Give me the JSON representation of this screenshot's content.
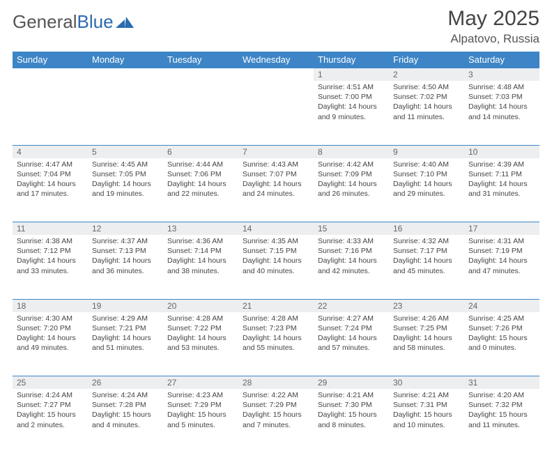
{
  "logo": {
    "part1": "General",
    "part2": "Blue"
  },
  "title": "May 2025",
  "location": "Alpatovo, Russia",
  "colors": {
    "header_bg": "#3d85c6",
    "header_text": "#ffffff",
    "daynum_bg": "#eceef0",
    "text": "#444444",
    "accent": "#2b6bb0"
  },
  "weekdays": [
    "Sunday",
    "Monday",
    "Tuesday",
    "Wednesday",
    "Thursday",
    "Friday",
    "Saturday"
  ],
  "weeks": [
    [
      null,
      null,
      null,
      null,
      {
        "n": "1",
        "sr": "Sunrise: 4:51 AM",
        "ss": "Sunset: 7:00 PM",
        "d1": "Daylight: 14 hours",
        "d2": "and 9 minutes."
      },
      {
        "n": "2",
        "sr": "Sunrise: 4:50 AM",
        "ss": "Sunset: 7:02 PM",
        "d1": "Daylight: 14 hours",
        "d2": "and 11 minutes."
      },
      {
        "n": "3",
        "sr": "Sunrise: 4:48 AM",
        "ss": "Sunset: 7:03 PM",
        "d1": "Daylight: 14 hours",
        "d2": "and 14 minutes."
      }
    ],
    [
      {
        "n": "4",
        "sr": "Sunrise: 4:47 AM",
        "ss": "Sunset: 7:04 PM",
        "d1": "Daylight: 14 hours",
        "d2": "and 17 minutes."
      },
      {
        "n": "5",
        "sr": "Sunrise: 4:45 AM",
        "ss": "Sunset: 7:05 PM",
        "d1": "Daylight: 14 hours",
        "d2": "and 19 minutes."
      },
      {
        "n": "6",
        "sr": "Sunrise: 4:44 AM",
        "ss": "Sunset: 7:06 PM",
        "d1": "Daylight: 14 hours",
        "d2": "and 22 minutes."
      },
      {
        "n": "7",
        "sr": "Sunrise: 4:43 AM",
        "ss": "Sunset: 7:07 PM",
        "d1": "Daylight: 14 hours",
        "d2": "and 24 minutes."
      },
      {
        "n": "8",
        "sr": "Sunrise: 4:42 AM",
        "ss": "Sunset: 7:09 PM",
        "d1": "Daylight: 14 hours",
        "d2": "and 26 minutes."
      },
      {
        "n": "9",
        "sr": "Sunrise: 4:40 AM",
        "ss": "Sunset: 7:10 PM",
        "d1": "Daylight: 14 hours",
        "d2": "and 29 minutes."
      },
      {
        "n": "10",
        "sr": "Sunrise: 4:39 AM",
        "ss": "Sunset: 7:11 PM",
        "d1": "Daylight: 14 hours",
        "d2": "and 31 minutes."
      }
    ],
    [
      {
        "n": "11",
        "sr": "Sunrise: 4:38 AM",
        "ss": "Sunset: 7:12 PM",
        "d1": "Daylight: 14 hours",
        "d2": "and 33 minutes."
      },
      {
        "n": "12",
        "sr": "Sunrise: 4:37 AM",
        "ss": "Sunset: 7:13 PM",
        "d1": "Daylight: 14 hours",
        "d2": "and 36 minutes."
      },
      {
        "n": "13",
        "sr": "Sunrise: 4:36 AM",
        "ss": "Sunset: 7:14 PM",
        "d1": "Daylight: 14 hours",
        "d2": "and 38 minutes."
      },
      {
        "n": "14",
        "sr": "Sunrise: 4:35 AM",
        "ss": "Sunset: 7:15 PM",
        "d1": "Daylight: 14 hours",
        "d2": "and 40 minutes."
      },
      {
        "n": "15",
        "sr": "Sunrise: 4:33 AM",
        "ss": "Sunset: 7:16 PM",
        "d1": "Daylight: 14 hours",
        "d2": "and 42 minutes."
      },
      {
        "n": "16",
        "sr": "Sunrise: 4:32 AM",
        "ss": "Sunset: 7:17 PM",
        "d1": "Daylight: 14 hours",
        "d2": "and 45 minutes."
      },
      {
        "n": "17",
        "sr": "Sunrise: 4:31 AM",
        "ss": "Sunset: 7:19 PM",
        "d1": "Daylight: 14 hours",
        "d2": "and 47 minutes."
      }
    ],
    [
      {
        "n": "18",
        "sr": "Sunrise: 4:30 AM",
        "ss": "Sunset: 7:20 PM",
        "d1": "Daylight: 14 hours",
        "d2": "and 49 minutes."
      },
      {
        "n": "19",
        "sr": "Sunrise: 4:29 AM",
        "ss": "Sunset: 7:21 PM",
        "d1": "Daylight: 14 hours",
        "d2": "and 51 minutes."
      },
      {
        "n": "20",
        "sr": "Sunrise: 4:28 AM",
        "ss": "Sunset: 7:22 PM",
        "d1": "Daylight: 14 hours",
        "d2": "and 53 minutes."
      },
      {
        "n": "21",
        "sr": "Sunrise: 4:28 AM",
        "ss": "Sunset: 7:23 PM",
        "d1": "Daylight: 14 hours",
        "d2": "and 55 minutes."
      },
      {
        "n": "22",
        "sr": "Sunrise: 4:27 AM",
        "ss": "Sunset: 7:24 PM",
        "d1": "Daylight: 14 hours",
        "d2": "and 57 minutes."
      },
      {
        "n": "23",
        "sr": "Sunrise: 4:26 AM",
        "ss": "Sunset: 7:25 PM",
        "d1": "Daylight: 14 hours",
        "d2": "and 58 minutes."
      },
      {
        "n": "24",
        "sr": "Sunrise: 4:25 AM",
        "ss": "Sunset: 7:26 PM",
        "d1": "Daylight: 15 hours",
        "d2": "and 0 minutes."
      }
    ],
    [
      {
        "n": "25",
        "sr": "Sunrise: 4:24 AM",
        "ss": "Sunset: 7:27 PM",
        "d1": "Daylight: 15 hours",
        "d2": "and 2 minutes."
      },
      {
        "n": "26",
        "sr": "Sunrise: 4:24 AM",
        "ss": "Sunset: 7:28 PM",
        "d1": "Daylight: 15 hours",
        "d2": "and 4 minutes."
      },
      {
        "n": "27",
        "sr": "Sunrise: 4:23 AM",
        "ss": "Sunset: 7:29 PM",
        "d1": "Daylight: 15 hours",
        "d2": "and 5 minutes."
      },
      {
        "n": "28",
        "sr": "Sunrise: 4:22 AM",
        "ss": "Sunset: 7:29 PM",
        "d1": "Daylight: 15 hours",
        "d2": "and 7 minutes."
      },
      {
        "n": "29",
        "sr": "Sunrise: 4:21 AM",
        "ss": "Sunset: 7:30 PM",
        "d1": "Daylight: 15 hours",
        "d2": "and 8 minutes."
      },
      {
        "n": "30",
        "sr": "Sunrise: 4:21 AM",
        "ss": "Sunset: 7:31 PM",
        "d1": "Daylight: 15 hours",
        "d2": "and 10 minutes."
      },
      {
        "n": "31",
        "sr": "Sunrise: 4:20 AM",
        "ss": "Sunset: 7:32 PM",
        "d1": "Daylight: 15 hours",
        "d2": "and 11 minutes."
      }
    ]
  ]
}
